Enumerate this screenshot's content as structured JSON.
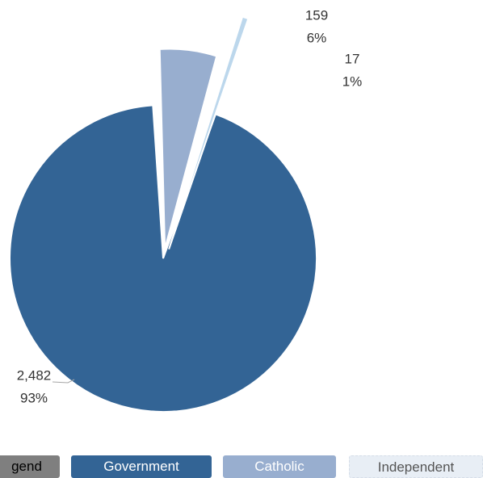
{
  "chart_data": {
    "type": "pie",
    "categories": [
      "Government",
      "Catholic",
      "Independent"
    ],
    "values": [
      2482,
      159,
      17
    ],
    "percent_labels": [
      "93%",
      "6%",
      "1%"
    ],
    "value_labels": [
      "2,482",
      "159",
      "17"
    ],
    "colors": [
      "#336495",
      "#98aecf",
      "#bcd7ec"
    ],
    "legend_placement": "bottom",
    "exploded": true
  },
  "legend": {
    "title": "gend",
    "items": [
      {
        "label": "Government",
        "color": "#336495",
        "text_color": "#ffffff"
      },
      {
        "label": "Catholic",
        "color": "#98aecf",
        "text_color": "#ffffff"
      },
      {
        "label": "Independent",
        "color": "#e8eef5",
        "text_color": "#555555"
      }
    ]
  }
}
